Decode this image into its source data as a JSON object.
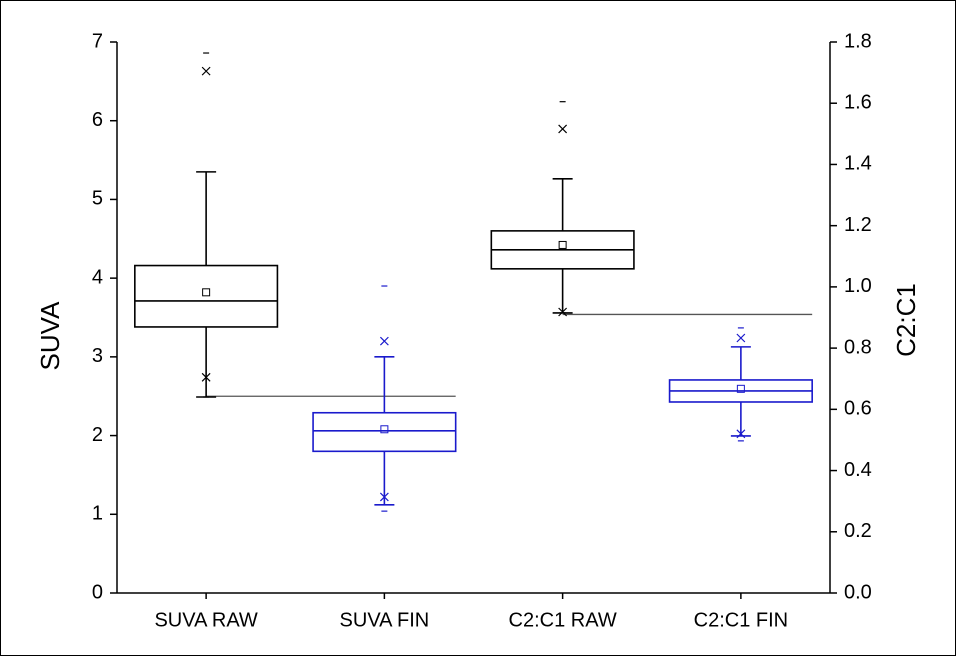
{
  "chart_data": {
    "type": "box",
    "categories": [
      "SUVA RAW",
      "SUVA FIN",
      "C2:C1 RAW",
      "C2:C1 FIN"
    ],
    "ylabel": "SUVA",
    "y2label": "C2:C1",
    "ylim": [
      0,
      7
    ],
    "yticks": [
      0,
      1,
      2,
      3,
      4,
      5,
      6,
      7
    ],
    "y2lim": [
      0,
      1.8
    ],
    "y2ticks": [
      {
        "value": 0,
        "label": "0.0"
      },
      0.2,
      0.4,
      0.6,
      0.8,
      {
        "value": 1,
        "label": "1.0"
      },
      1.2,
      1.4,
      1.6,
      1.8
    ],
    "boxes": [
      {
        "axis": "y",
        "color": "#000000",
        "min": 2.49,
        "whisker_low": 2.49,
        "p1": 2.74,
        "q1": 3.38,
        "median": 3.71,
        "mean": 3.82,
        "q3": 4.16,
        "whisker_high": 5.35,
        "p99": 6.63,
        "max": 6.86
      },
      {
        "axis": "y",
        "color": "#1a1acc",
        "min": 1.04,
        "whisker_low": 1.12,
        "p1": 1.22,
        "q1": 1.8,
        "median": 2.06,
        "mean": 2.08,
        "q3": 2.29,
        "whisker_high": 3.0,
        "p99": 3.2,
        "max": 3.9
      },
      {
        "axis": "y2",
        "color": "#000000",
        "min": 0.915,
        "whisker_low": 0.915,
        "p1": 0.918,
        "q1": 1.059,
        "median": 1.121,
        "mean": 1.137,
        "q3": 1.183,
        "whisker_high": 1.353,
        "p99": 1.516,
        "max": 1.605
      },
      {
        "axis": "y2",
        "color": "#1a1acc",
        "min": 0.497,
        "whisker_low": 0.513,
        "p1": 0.52,
        "q1": 0.624,
        "median": 0.66,
        "mean": 0.667,
        "q3": 0.696,
        "whisker_high": 0.804,
        "p99": 0.833,
        "max": 0.866
      }
    ],
    "reference_lines": [
      {
        "axis": "y",
        "value": 2.5,
        "color": "#555555"
      },
      {
        "axis": "y2",
        "value": 0.91,
        "color": "#555555"
      }
    ]
  }
}
